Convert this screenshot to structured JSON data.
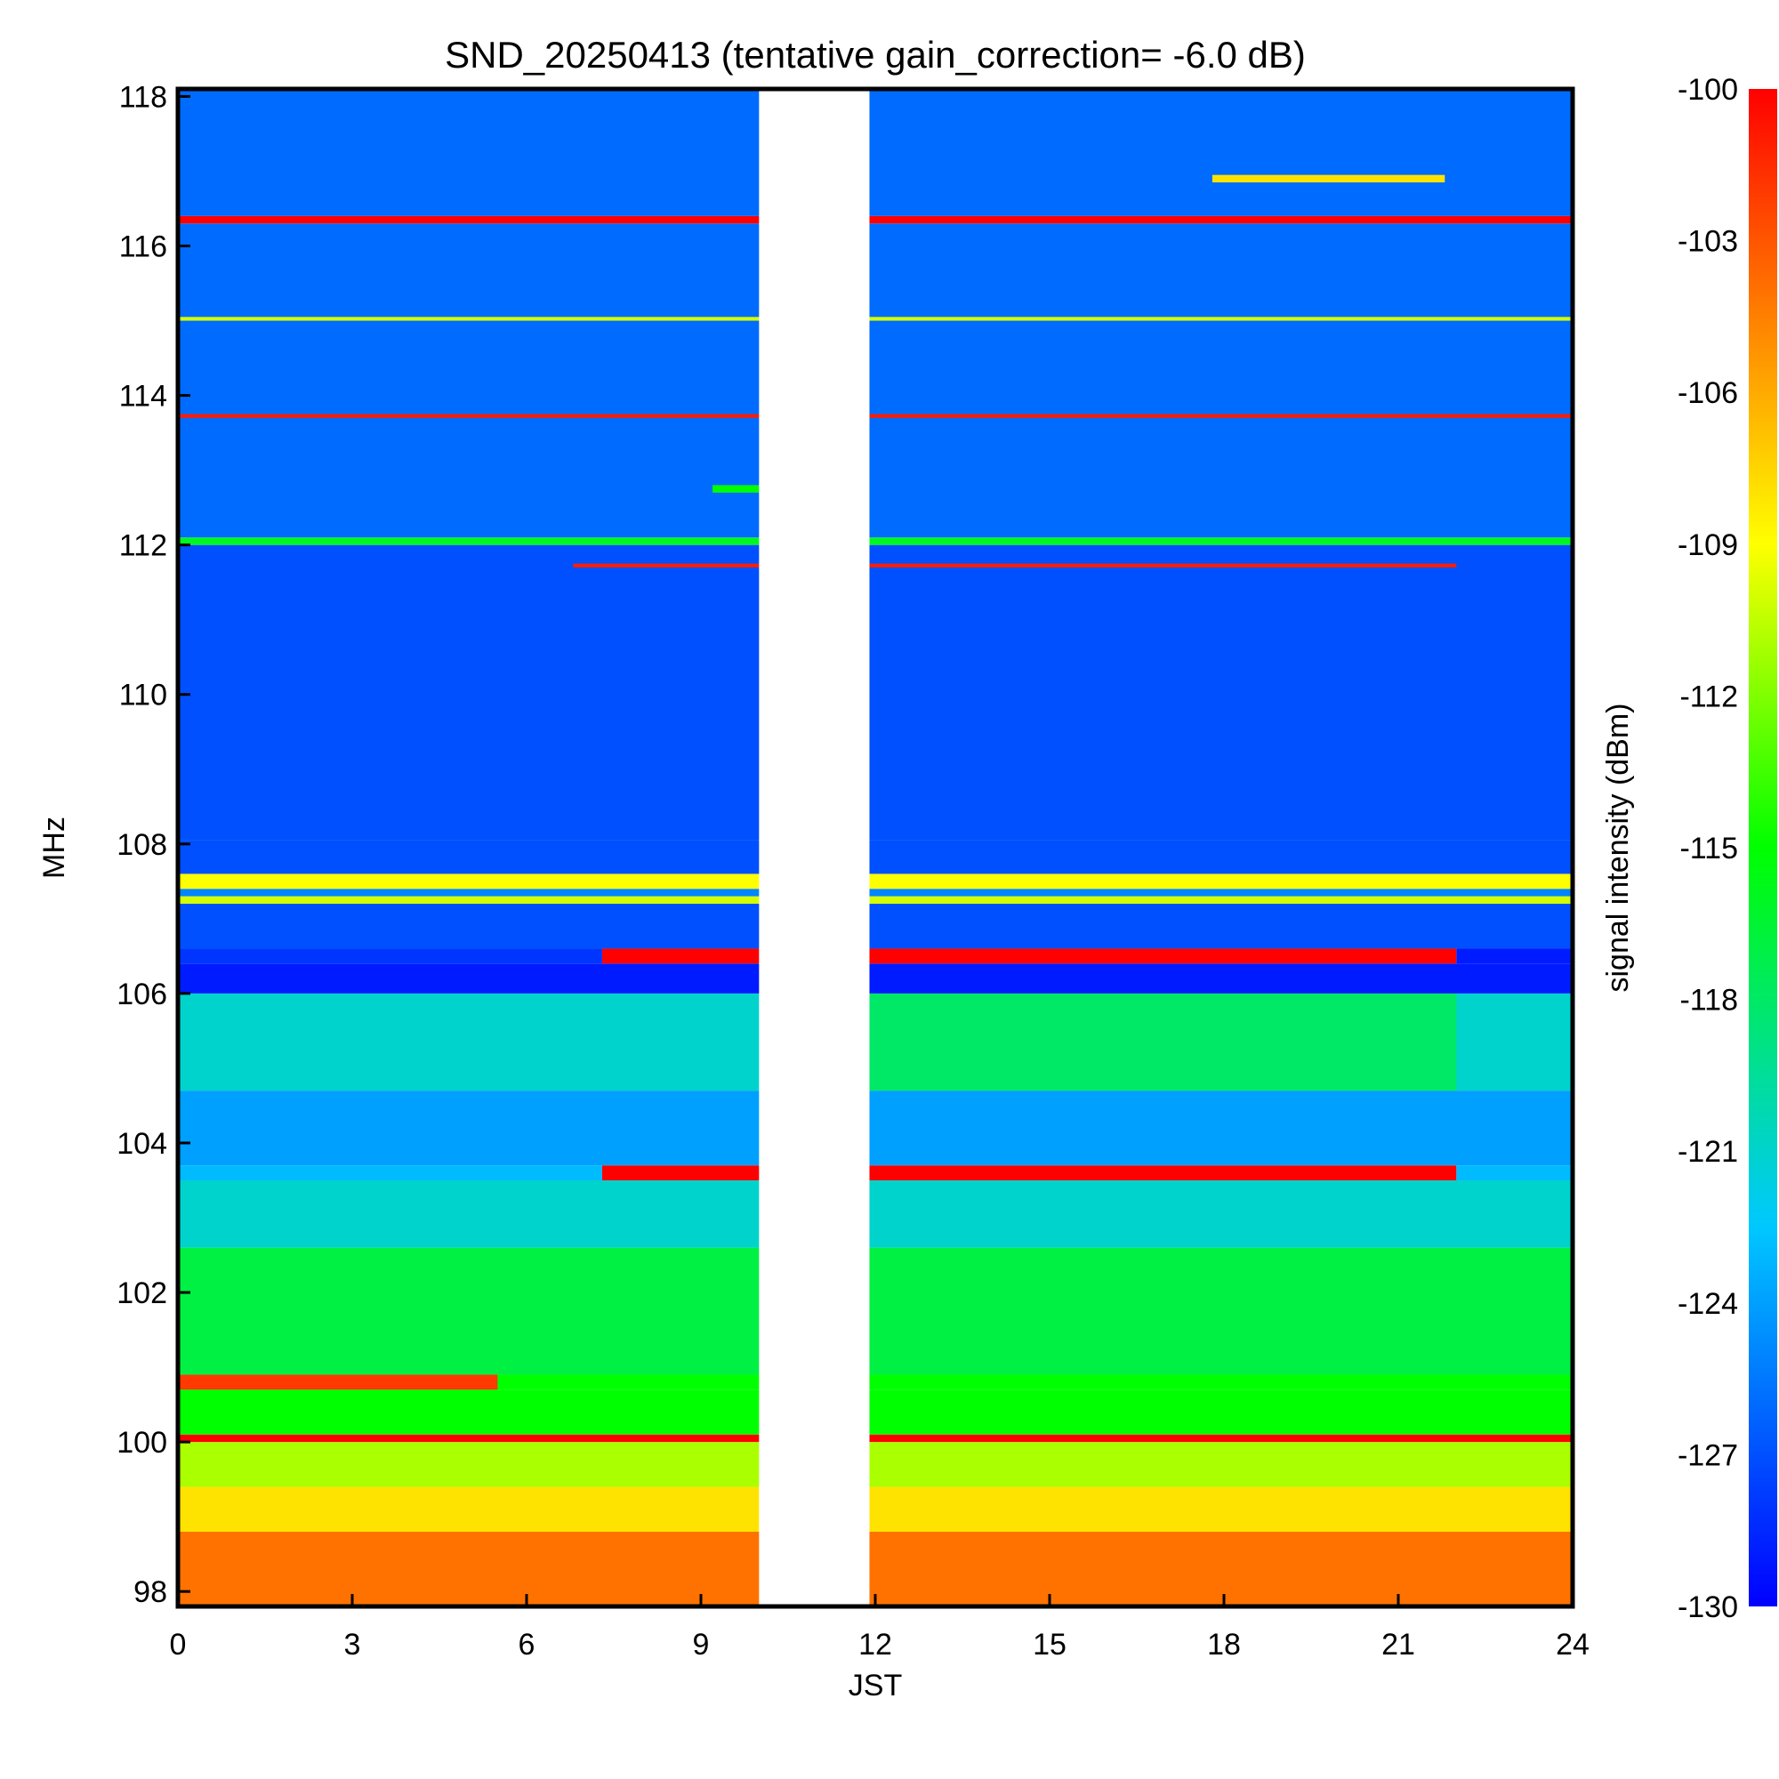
{
  "chart_data": {
    "type": "heatmap",
    "title": "SND_20250413 (tentative gain_correction= -6.0 dB)",
    "xlabel": "JST",
    "ylabel": "MHz",
    "colorbar_label": "signal intensity (dBm)",
    "xlim": [
      0,
      24
    ],
    "ylim": [
      97.8,
      118.1
    ],
    "x_ticks": [
      "0",
      "3",
      "6",
      "9",
      "12",
      "15",
      "18",
      "21",
      "24"
    ],
    "x_tick_values": [
      0,
      3,
      6,
      9,
      12,
      15,
      18,
      21,
      24
    ],
    "y_ticks": [
      "98",
      "100",
      "102",
      "104",
      "106",
      "108",
      "110",
      "112",
      "114",
      "116",
      "118"
    ],
    "y_tick_values": [
      98,
      100,
      102,
      104,
      106,
      108,
      110,
      112,
      114,
      116,
      118
    ],
    "colorbar_ticks": [
      "-100",
      "-103",
      "-106",
      "-109",
      "-112",
      "-115",
      "-118",
      "-121",
      "-124",
      "-127",
      "-130"
    ],
    "colorbar_tick_values": [
      -100,
      -103,
      -106,
      -109,
      -112,
      -115,
      -118,
      -121,
      -124,
      -127,
      -130
    ],
    "colorbar_range": [
      -130,
      -100
    ],
    "colormap": "rainbow (blue low, red high)",
    "data_gap_jst": [
      10,
      11.9
    ],
    "bands": [
      {
        "f_start": 97.8,
        "f_end": 98.8,
        "t_start": 0,
        "t_end": 24,
        "dbm": -104
      },
      {
        "f_start": 98.8,
        "f_end": 99.4,
        "t_start": 0,
        "t_end": 24,
        "dbm": -108
      },
      {
        "f_start": 99.4,
        "f_end": 100.0,
        "t_start": 0,
        "t_end": 24,
        "dbm": -111
      },
      {
        "f_start": 100.0,
        "f_end": 100.1,
        "t_start": 0,
        "t_end": 24,
        "dbm": -100
      },
      {
        "f_start": 100.1,
        "f_end": 100.7,
        "t_start": 0,
        "t_end": 24,
        "dbm": -115
      },
      {
        "f_start": 100.7,
        "f_end": 100.9,
        "t_start": 0,
        "t_end": 24,
        "dbm": -115
      },
      {
        "f_start": 100.7,
        "f_end": 100.9,
        "t_start": 0,
        "t_end": 5.5,
        "dbm": -102
      },
      {
        "f_start": 100.9,
        "f_end": 102.6,
        "t_start": 0,
        "t_end": 24,
        "dbm": -117
      },
      {
        "f_start": 102.6,
        "f_end": 103.5,
        "t_start": 0,
        "t_end": 24,
        "dbm": -121
      },
      {
        "f_start": 103.5,
        "f_end": 103.7,
        "t_start": 0,
        "t_end": 7.3,
        "dbm": -123
      },
      {
        "f_start": 103.5,
        "f_end": 103.7,
        "t_start": 7.3,
        "t_end": 22,
        "dbm": -100
      },
      {
        "f_start": 103.5,
        "f_end": 103.7,
        "t_start": 22,
        "t_end": 24,
        "dbm": -123
      },
      {
        "f_start": 103.7,
        "f_end": 104.7,
        "t_start": 0,
        "t_end": 24,
        "dbm": -124
      },
      {
        "f_start": 104.7,
        "f_end": 106.0,
        "t_start": 0,
        "t_end": 24,
        "dbm": -121
      },
      {
        "f_start": 104.7,
        "f_end": 106.0,
        "t_start": 11.9,
        "t_end": 22,
        "dbm": -118
      },
      {
        "f_start": 106.0,
        "f_end": 106.4,
        "t_start": 0,
        "t_end": 24,
        "dbm": -129
      },
      {
        "f_start": 106.4,
        "f_end": 106.6,
        "t_start": 0,
        "t_end": 7.3,
        "dbm": -128
      },
      {
        "f_start": 106.4,
        "f_end": 106.6,
        "t_start": 7.3,
        "t_end": 22,
        "dbm": -100
      },
      {
        "f_start": 106.4,
        "f_end": 106.6,
        "t_start": 22,
        "t_end": 24,
        "dbm": -129
      },
      {
        "f_start": 106.6,
        "f_end": 107.2,
        "t_start": 0,
        "t_end": 24,
        "dbm": -127
      },
      {
        "f_start": 107.2,
        "f_end": 107.3,
        "t_start": 0,
        "t_end": 24,
        "dbm": -110
      },
      {
        "f_start": 107.3,
        "f_end": 107.4,
        "t_start": 0,
        "t_end": 24,
        "dbm": -125
      },
      {
        "f_start": 107.4,
        "f_end": 107.6,
        "t_start": 0,
        "t_end": 24,
        "dbm": -109
      },
      {
        "f_start": 107.6,
        "f_end": 108.05,
        "t_start": 0,
        "t_end": 24,
        "dbm": -127
      },
      {
        "f_start": 108.05,
        "f_end": 112.0,
        "t_start": 0,
        "t_end": 24,
        "dbm": -127
      },
      {
        "f_start": 112.0,
        "f_end": 112.1,
        "t_start": 0,
        "t_end": 24,
        "dbm": -116
      },
      {
        "f_start": 112.1,
        "f_end": 116.3,
        "t_start": 0,
        "t_end": 24,
        "dbm": -126
      },
      {
        "f_start": 116.3,
        "f_end": 116.4,
        "t_start": 0,
        "t_end": 24,
        "dbm": -100
      },
      {
        "f_start": 116.4,
        "f_end": 118.1,
        "t_start": 0,
        "t_end": 24,
        "dbm": -126
      },
      {
        "f_start": 116.85,
        "f_end": 116.95,
        "t_start": 17.8,
        "t_end": 21.8,
        "dbm": -108
      },
      {
        "f_start": 115.0,
        "f_end": 115.05,
        "t_start": 0,
        "t_end": 24,
        "dbm": -110
      },
      {
        "f_start": 113.7,
        "f_end": 113.75,
        "t_start": 0,
        "t_end": 24,
        "dbm": -101
      },
      {
        "f_start": 111.7,
        "f_end": 111.75,
        "t_start": 6.8,
        "t_end": 22,
        "dbm": -101
      },
      {
        "f_start": 112.7,
        "f_end": 112.8,
        "t_start": 9.2,
        "t_end": 10,
        "dbm": -115
      }
    ]
  }
}
